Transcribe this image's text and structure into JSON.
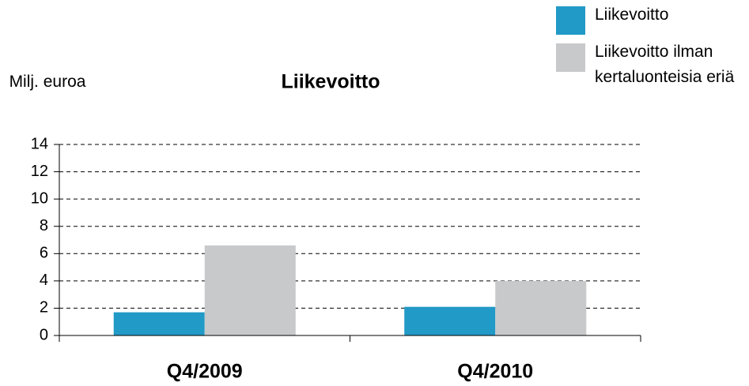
{
  "chart_data": {
    "type": "bar",
    "title": "Liikevoitto",
    "y_label": "Milj. euroa",
    "categories": [
      "Q4/2009",
      "Q4/2010"
    ],
    "series": [
      {
        "name": "Liikevoitto",
        "color": "#219ac7",
        "values": [
          1.7,
          2.1
        ]
      },
      {
        "name": "Liikevoitto ilman kertaluonteisia eriä",
        "color": "#c8c9cb",
        "values": [
          6.6,
          4.0
        ]
      }
    ],
    "ylim": [
      0,
      14
    ],
    "yticks": [
      0,
      2,
      4,
      6,
      8,
      10,
      12,
      14
    ],
    "grid": true,
    "legend": "top-right"
  }
}
